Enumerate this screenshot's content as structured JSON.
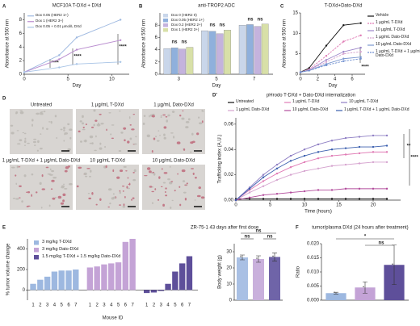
{
  "chart_data": [
    {
      "panel": "A",
      "type": "line",
      "title": "MCF10A T-DXd + DXd",
      "xlabel": "Day",
      "ylabel": "Absorbance at 550 nm",
      "x": [
        0,
        4,
        6,
        11
      ],
      "xlim": [
        0,
        12
      ],
      "xticks": [
        0,
        5,
        10
      ],
      "ylim": [
        0,
        9
      ],
      "yticks": [
        0,
        2,
        4,
        6,
        8
      ],
      "series": [
        {
          "name": "Dox 0.05 (HER2 1+)",
          "color": "#9db8e0",
          "values": [
            0.3,
            2.8,
            5.4,
            8.0
          ]
        },
        {
          "name": "Dox 1 (HER2 3+)",
          "color": "#b98ccf",
          "values": [
            0.3,
            2.2,
            3.6,
            5.0
          ]
        },
        {
          "name": "Dox 0.05 + 0.01 µmol/L DXd",
          "color": "#a8c4e6",
          "values": [
            0.3,
            1.0,
            1.5,
            1.8
          ]
        }
      ],
      "annotations": [
        "****",
        "****",
        "****"
      ]
    },
    {
      "panel": "B",
      "type": "grouped-bar",
      "title": "anti-TROP2 ADC",
      "xlabel": "Day",
      "ylabel": "Absorbance at 550 nm",
      "categories": [
        "3",
        "5",
        "7"
      ],
      "ylim": [
        0,
        10
      ],
      "yticks": [
        0,
        2,
        4,
        6,
        8
      ],
      "series": [
        {
          "name": "Dox 0 (HER2 0)",
          "color": "#c9d6ea",
          "values": [
            4.2,
            7.1,
            8.0
          ]
        },
        {
          "name": "Dox 0.05 (HER2 1+)",
          "color": "#8fb0dc",
          "values": [
            4.3,
            7.0,
            8.1
          ]
        },
        {
          "name": "Dox 0.2 (HER2 2+)",
          "color": "#c4b3dd",
          "values": [
            4.1,
            6.6,
            7.8
          ]
        },
        {
          "name": "Dox 1 (HER2 3+)",
          "color": "#d8e0a8",
          "values": [
            4.4,
            7.2,
            8.2
          ]
        }
      ],
      "annotations": [
        "ns",
        "ns",
        "ns",
        "ns",
        "ns",
        "ns"
      ]
    },
    {
      "panel": "C",
      "type": "line",
      "title": "T-DXd+Dato-DXd",
      "xlabel": "Day",
      "ylabel": "Absorbance at 550 nm",
      "x": [
        0,
        1,
        3,
        5,
        7
      ],
      "xlim": [
        0,
        7.5
      ],
      "xticks": [
        0,
        2,
        4,
        6
      ],
      "ylim": [
        0,
        15
      ],
      "yticks": [
        0,
        5,
        10,
        15
      ],
      "series": [
        {
          "name": "Vehicle",
          "color": "#111111",
          "values": [
            0.5,
            1.5,
            7,
            12,
            12.5
          ]
        },
        {
          "name": "1 µg/mL T-DXd",
          "color": "#e07bb5",
          "dash": true,
          "values": [
            0.5,
            1.2,
            4.5,
            8,
            9.5
          ]
        },
        {
          "name": "10 µg/mL T-DXd",
          "color": "#9c86c9",
          "values": [
            0.5,
            1,
            3.5,
            5.5,
            6.5
          ]
        },
        {
          "name": "1 µg/mL Dato-DXd",
          "color": "#d6a4cf",
          "dash": true,
          "values": [
            0.5,
            1,
            3,
            5,
            5.5
          ]
        },
        {
          "name": "10 µg/mL Dato-DXd",
          "color": "#7b97cf",
          "values": [
            0.5,
            0.9,
            2.5,
            3.8,
            4.2
          ]
        },
        {
          "name": "1 µg/mL T-DXd + 1 µg/mL Dato-DXd",
          "color": "#6f8fd0",
          "dash": true,
          "values": [
            0.5,
            0.9,
            2.2,
            3.2,
            3.8
          ]
        }
      ],
      "annotations": [
        "****"
      ]
    },
    {
      "panel": "D",
      "type": "image-grid",
      "labels": [
        "Untreated",
        "1 µg/mL T-DXd",
        "1 µg/mL Dato-DXd",
        "1 µg/mL T-DXd + 1 µg/mL Dato-DXd",
        "10 µg/mL T-DXd",
        "10 µg/mL Dato-DXd"
      ]
    },
    {
      "panel": "D′",
      "type": "line",
      "title": "pHrodo T-DXd + Dato-DXd internalization",
      "xlabel": "Time (hours)",
      "ylabel": "Trafficking index (A.U.)",
      "x": [
        0,
        2,
        4,
        6,
        8,
        10,
        12,
        14,
        16,
        18,
        20,
        22
      ],
      "xlim": [
        0,
        24
      ],
      "xticks": [
        0,
        5,
        10,
        15,
        20
      ],
      "ylim": [
        0,
        0.065
      ],
      "yticks": [
        {
          "value": 0,
          "label": "0.00"
        },
        {
          "value": 0.02,
          "label": "0.02"
        },
        {
          "value": 0.04,
          "label": "0.04"
        },
        {
          "value": 0.06,
          "label": "0.06"
        }
      ],
      "series": [
        {
          "name": "Untreated",
          "color": "#111111",
          "values": [
            0.001,
            0.001,
            0.001,
            0.001,
            0.001,
            0.001,
            0.001,
            0.001,
            0.001,
            0.001,
            0.001,
            0.001
          ]
        },
        {
          "name": "1 µg/mL T-DXd",
          "color": "#e07bb5",
          "values": [
            0,
            0.008,
            0.015,
            0.021,
            0.026,
            0.03,
            0.033,
            0.035,
            0.036,
            0.037,
            0.038,
            0.038
          ]
        },
        {
          "name": "10 µg/mL T-DXd",
          "color": "#8f7fc4",
          "values": [
            0,
            0.01,
            0.02,
            0.028,
            0.035,
            0.04,
            0.044,
            0.047,
            0.049,
            0.05,
            0.051,
            0.051
          ]
        },
        {
          "name": "1 µg/mL Dato-DXd",
          "color": "#d6a4cf",
          "values": [
            0,
            0.006,
            0.011,
            0.016,
            0.02,
            0.023,
            0.025,
            0.027,
            0.028,
            0.029,
            0.03,
            0.03
          ]
        },
        {
          "name": "10 µg/mL Dato-DXd",
          "color": "#b24c9c",
          "values": [
            0,
            0.002,
            0.004,
            0.005,
            0.006,
            0.007,
            0.008,
            0.008,
            0.009,
            0.009,
            0.009,
            0.009
          ]
        },
        {
          "name": "1 µg/mL T-DXd + 1 µg/mL Dato-DXd",
          "color": "#3b5fae",
          "values": [
            0,
            0.009,
            0.018,
            0.025,
            0.031,
            0.035,
            0.038,
            0.04,
            0.041,
            0.042,
            0.042,
            0.043
          ]
        }
      ],
      "annotations": [
        "**",
        "****"
      ]
    },
    {
      "panel": "E",
      "type": "waterfall",
      "title": "ZR-75-1 43 days after first dose",
      "xlabel": "Mouse ID",
      "ylabel": "% tumor volume change",
      "categories": [
        "1",
        "2",
        "3",
        "4",
        "5",
        "6",
        "7"
      ],
      "ylim": [
        -100,
        500
      ],
      "yticks": [
        0,
        200,
        400
      ],
      "series": [
        {
          "name": "3 mg/kg T-DXd",
          "color": "#9db8e0",
          "values": [
            60,
            100,
            130,
            180,
            190,
            190,
            200
          ]
        },
        {
          "name": "3 mg/kg Dato-DXd",
          "color": "#c4a3d6",
          "values": [
            220,
            230,
            250,
            260,
            270,
            470,
            500
          ]
        },
        {
          "name": "1.5 mg/kg T-DXd + 1.5 mg/kg Dato-DXd",
          "color": "#5e4f9a",
          "values": [
            -30,
            -25,
            -10,
            60,
            180,
            260,
            330
          ]
        }
      ]
    },
    {
      "type": "bar",
      "ylabel": "Body weight (g)",
      "ylim": [
        0,
        35
      ],
      "yticks": [
        0,
        10,
        20,
        30
      ],
      "values": [
        26.5,
        25.5,
        26.8
      ],
      "errors": [
        1.5,
        2,
        2.5
      ],
      "colors": [
        "#a9c0e4",
        "#c9b0dc",
        "#6f64a8"
      ],
      "annotations": [
        "ns",
        "ns",
        "ns"
      ]
    },
    {
      "panel": "F",
      "type": "bar",
      "title": "tumor/plasma DXd (24 hours after treatment)",
      "ylabel": "Ratio",
      "ylim": [
        0,
        0.02
      ],
      "yticks": [
        {
          "value": 0,
          "label": "0.000"
        },
        {
          "value": 0.005,
          "label": "0.005"
        },
        {
          "value": 0.01,
          "label": "0.010"
        },
        {
          "value": 0.015,
          "label": "0.015"
        },
        {
          "value": 0.02,
          "label": "0.020"
        }
      ],
      "values": [
        0.0025,
        0.0045,
        0.0125
      ],
      "errors": [
        0.0003,
        0.002,
        0.007
      ],
      "colors": [
        "#9db8e0",
        "#c4a3d6",
        "#5e4f9a"
      ],
      "annotations": [
        "*",
        "ns"
      ]
    }
  ]
}
